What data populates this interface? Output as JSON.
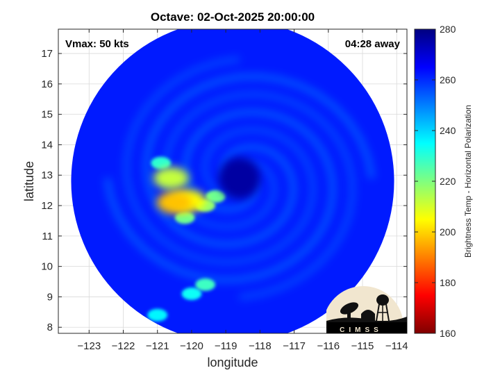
{
  "chart_data": {
    "type": "heatmap",
    "title": "Octave: 02-Oct-2025 20:00:00",
    "xlabel": "longitude",
    "ylabel": "latitude",
    "xlim": [
      -123.9,
      -113.7
    ],
    "ylim": [
      7.8,
      17.8
    ],
    "x_ticks": [
      -123,
      -122,
      -121,
      -120,
      -119,
      -118,
      -117,
      -116,
      -115,
      -114
    ],
    "y_ticks": [
      8,
      9,
      10,
      11,
      12,
      13,
      14,
      15,
      16,
      17
    ],
    "grid": true,
    "annotations": {
      "vmax": "Vmax: 50 kts",
      "distance": "04:28 away"
    },
    "colorbar": {
      "label": "Brightness Temp - Horizontal Polarization",
      "min": 160,
      "max": 280,
      "ticks": [
        160,
        180,
        200,
        220,
        240,
        260,
        280
      ],
      "colormap": "jet"
    },
    "swath": {
      "center_lon": -118.8,
      "center_lat": 12.8,
      "radius_deg": 5.0,
      "background_value": 262
    },
    "storm_center": {
      "lon": -118.6,
      "lat": 12.9,
      "value": 276
    },
    "features": [
      {
        "lon": -120.1,
        "lat": 12.15,
        "value": 205
      },
      {
        "lon": -120.5,
        "lat": 12.1,
        "value": 198
      },
      {
        "lon": -120.6,
        "lat": 12.9,
        "value": 212
      },
      {
        "lon": -119.6,
        "lat": 12.0,
        "value": 218
      },
      {
        "lon": -119.3,
        "lat": 12.3,
        "value": 222
      },
      {
        "lon": -120.2,
        "lat": 11.6,
        "value": 222
      },
      {
        "lon": -120.9,
        "lat": 13.4,
        "value": 230
      },
      {
        "lon": -119.6,
        "lat": 9.4,
        "value": 228
      },
      {
        "lon": -120.0,
        "lat": 9.1,
        "value": 234
      },
      {
        "lon": -121.0,
        "lat": 8.4,
        "value": 236
      }
    ],
    "logo": "CIMSS"
  }
}
